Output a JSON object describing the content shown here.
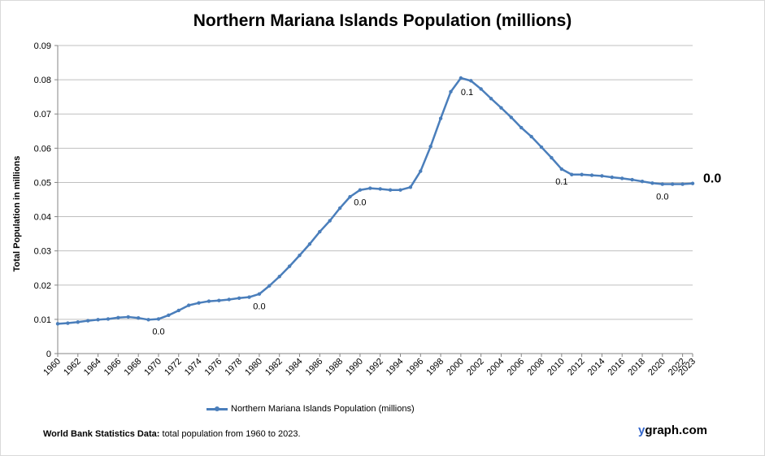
{
  "chart_data": {
    "type": "line",
    "title": "Northern Mariana Islands Population (millions)",
    "ylabel": "Total Population  in millions",
    "xlabel": "",
    "ylim": [
      0,
      0.09
    ],
    "xlim": [
      1960,
      2023
    ],
    "y_ticks": [
      "0",
      "0.01",
      "0.02",
      "0.03",
      "0.04",
      "0.05",
      "0.06",
      "0.07",
      "0.08",
      "0.09"
    ],
    "x_ticks": [
      "1960",
      "1962",
      "1964",
      "1966",
      "1968",
      "1970",
      "1972",
      "1974",
      "1976",
      "1978",
      "1980",
      "1982",
      "1984",
      "1986",
      "1988",
      "1990",
      "1992",
      "1994",
      "1996",
      "1998",
      "2000",
      "2002",
      "2004",
      "2006",
      "2008",
      "2010",
      "2012",
      "2014",
      "2016",
      "2018",
      "2020",
      "2022",
      "2023"
    ],
    "grid": true,
    "legend_position": "bottom",
    "color": "#4a7ebb",
    "series": [
      {
        "name": "Northern Mariana Islands Population (millions)",
        "x": [
          1960,
          1961,
          1962,
          1963,
          1964,
          1965,
          1966,
          1967,
          1968,
          1969,
          1970,
          1971,
          1972,
          1973,
          1974,
          1975,
          1976,
          1977,
          1978,
          1979,
          1980,
          1981,
          1982,
          1983,
          1984,
          1985,
          1986,
          1987,
          1988,
          1989,
          1990,
          1991,
          1992,
          1993,
          1994,
          1995,
          1996,
          1997,
          1998,
          1999,
          2000,
          2001,
          2002,
          2003,
          2004,
          2005,
          2006,
          2007,
          2008,
          2009,
          2010,
          2011,
          2012,
          2013,
          2014,
          2015,
          2016,
          2017,
          2018,
          2019,
          2020,
          2021,
          2022,
          2023
        ],
        "values": [
          0.0087,
          0.0089,
          0.0092,
          0.0096,
          0.0099,
          0.0101,
          0.0105,
          0.0107,
          0.0104,
          0.0099,
          0.0101,
          0.0112,
          0.0126,
          0.0141,
          0.0148,
          0.0153,
          0.0155,
          0.0158,
          0.0162,
          0.0165,
          0.0174,
          0.0198,
          0.0225,
          0.0255,
          0.0287,
          0.032,
          0.0356,
          0.0388,
          0.0425,
          0.0458,
          0.0478,
          0.0483,
          0.0481,
          0.0478,
          0.0478,
          0.0486,
          0.0533,
          0.0605,
          0.0687,
          0.0765,
          0.0805,
          0.0797,
          0.0773,
          0.0745,
          0.0718,
          0.069,
          0.066,
          0.0634,
          0.0603,
          0.0572,
          0.0539,
          0.0523,
          0.0523,
          0.0521,
          0.0519,
          0.0515,
          0.0512,
          0.0508,
          0.0503,
          0.0498,
          0.0495,
          0.0495,
          0.0495,
          0.0497
        ]
      }
    ],
    "annotations": [
      {
        "x": 1970,
        "label": "0.0"
      },
      {
        "x": 1980,
        "label": "0.0"
      },
      {
        "x": 1990,
        "label": "0.0"
      },
      {
        "x": 2000,
        "label": "0.1"
      },
      {
        "x": 2010,
        "label": "0.1"
      },
      {
        "x": 2020,
        "label": "0.0"
      },
      {
        "x": 2023,
        "label": "0.0",
        "emphasis": true
      }
    ]
  },
  "source": {
    "label": "World Bank Statistics Data:",
    "text": " total population from 1960 to 2023."
  },
  "brand": {
    "first": "y",
    "rest": "graph.com"
  }
}
